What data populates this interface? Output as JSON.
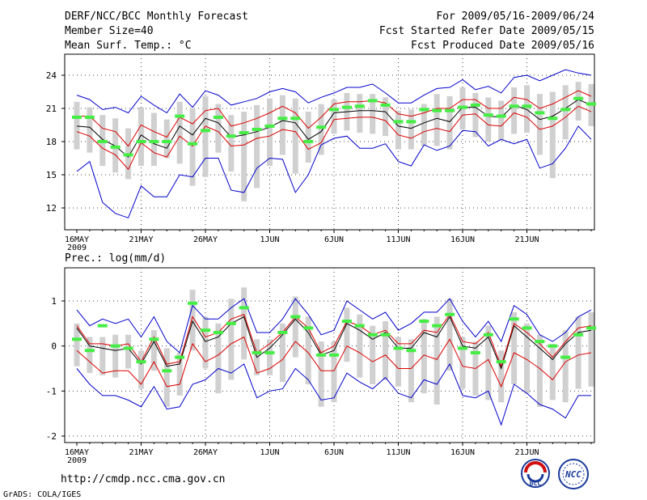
{
  "header": {
    "title": "DERF/NCC/BCC Monthly Forecast",
    "member_size": "Member Size=40",
    "variable": "Mean Surf. Temp.: °C",
    "period": "For 2009/05/16-2009/06/24",
    "started": "Fcst Started Refer Date 2009/05/15",
    "produced": "Fcst Produced Date 2009/05/16"
  },
  "footer": {
    "url": "http://cmdp.ncc.cma.gov.cn",
    "credit": "GrADS: COLA/IGES",
    "bcc_logo": "BCC",
    "ncc_logo": "NCC"
  },
  "colors": {
    "mean": "#000000",
    "envelope": "#0000cc",
    "spread": "#dd0000",
    "bar": "#d0d0d0",
    "obs": "#44ee44",
    "grid": "#444444"
  },
  "chart_data": [
    {
      "type": "line",
      "title": "Mean Surf. Temp.: °C",
      "x_labels": [
        "16MAY",
        "21MAY",
        "26MAY",
        "1JUN",
        "6JUN",
        "11JUN",
        "16JUN",
        "21JUN"
      ],
      "x_sublabel": "2009",
      "y_ticks": [
        "12",
        "15",
        "18",
        "21",
        "24"
      ],
      "ylim": [
        9.5,
        25.5
      ],
      "series": [
        {
          "name": "ensemble-mean",
          "values": [
            19.4,
            19.3,
            18.2,
            17.6,
            16.6,
            18.6,
            17.8,
            17.4,
            19.4,
            18.6,
            20.1,
            19.7,
            18.4,
            18.6,
            18.9,
            19.3,
            19.9,
            19.7,
            18.2,
            18.9,
            20.6,
            20.7,
            20.8,
            20.8,
            20.7,
            19.4,
            19.2,
            19.7,
            20.1,
            19.8,
            21.1,
            21.1,
            20.3,
            20.2,
            21.3,
            20.9,
            20.0,
            20.3,
            21.0,
            21.8,
            21.3
          ]
        },
        {
          "name": "max-envelope",
          "values": [
            22.2,
            21.8,
            20.9,
            21.1,
            20.6,
            22.1,
            21.3,
            20.6,
            22.3,
            21.1,
            22.6,
            22.2,
            21.3,
            21.6,
            21.9,
            22.5,
            22.8,
            22.5,
            21.5,
            22.0,
            22.4,
            22.9,
            22.9,
            23.2,
            22.4,
            21.5,
            21.5,
            22.2,
            22.8,
            22.9,
            23.6,
            22.7,
            23.0,
            22.4,
            23.8,
            24.0,
            23.5,
            24.0,
            24.5,
            24.2,
            24.0
          ]
        },
        {
          "name": "min-envelope",
          "values": [
            15.3,
            16.2,
            12.5,
            11.5,
            11.1,
            14.0,
            13.0,
            13.0,
            15.0,
            14.8,
            16.5,
            16.5,
            13.6,
            13.4,
            15.6,
            16.5,
            16.4,
            13.4,
            15.0,
            17.7,
            18.3,
            18.5,
            17.4,
            17.4,
            17.8,
            16.2,
            15.8,
            17.7,
            17.2,
            17.6,
            19.0,
            18.9,
            17.6,
            18.2,
            17.8,
            18.2,
            15.6,
            16.0,
            17.4,
            19.4,
            18.2
          ]
        },
        {
          "name": "upper-spread",
          "values": [
            20.3,
            20.3,
            19.2,
            18.9,
            17.6,
            19.5,
            18.9,
            18.4,
            20.2,
            19.6,
            20.8,
            21.0,
            19.4,
            19.7,
            20.1,
            20.6,
            21.2,
            20.6,
            19.2,
            20.2,
            21.4,
            21.6,
            21.6,
            21.7,
            21.5,
            20.5,
            20.3,
            20.6,
            21.0,
            21.0,
            21.8,
            21.8,
            21.0,
            21.0,
            22.0,
            21.8,
            21.0,
            21.4,
            22.0,
            22.6,
            22.1
          ]
        },
        {
          "name": "lower-spread",
          "values": [
            18.9,
            18.5,
            17.4,
            16.8,
            15.5,
            17.9,
            17.0,
            16.6,
            18.5,
            17.6,
            19.4,
            18.9,
            17.6,
            17.7,
            18.3,
            18.5,
            19.1,
            18.9,
            17.3,
            17.9,
            20.0,
            20.1,
            20.2,
            20.2,
            19.9,
            18.6,
            18.3,
            18.9,
            19.2,
            18.9,
            20.4,
            20.5,
            19.5,
            19.4,
            20.6,
            20.2,
            19.1,
            19.4,
            20.2,
            21.2,
            20.7
          ]
        },
        {
          "name": "observed",
          "values": [
            20.2,
            20.2,
            18.0,
            17.5,
            16.8,
            18.0,
            18.0,
            18.0,
            20.3,
            17.8,
            19.0,
            20.2,
            18.5,
            18.8,
            19.1,
            19.4,
            20.1,
            20.1,
            18.0,
            19.3,
            20.9,
            21.1,
            21.2,
            21.7,
            21.3,
            19.8,
            19.8,
            20.9,
            20.8,
            20.8,
            21.1,
            21.3,
            20.4,
            20.3,
            21.2,
            21.2,
            20.6,
            20.1,
            20.9,
            21.9,
            21.4
          ]
        }
      ],
      "bars": {
        "top": [
          21.6,
          21.1,
          20.4,
          20.1,
          19.2,
          21.1,
          20.6,
          20.0,
          21.6,
          21.0,
          22.1,
          21.4,
          20.4,
          20.7,
          21.3,
          21.9,
          22.2,
          21.9,
          20.7,
          21.4,
          21.8,
          22.4,
          22.3,
          22.3,
          22.0,
          20.8,
          20.9,
          21.4,
          22.3,
          22.1,
          22.9,
          22.4,
          22.0,
          21.7,
          22.9,
          23.1,
          22.3,
          22.5,
          23.1,
          23.4,
          23.2
        ],
        "bottom": [
          17.3,
          17.0,
          15.8,
          15.2,
          14.6,
          15.8,
          15.8,
          16.5,
          16.0,
          14.0,
          14.8,
          17.0,
          15.3,
          12.6,
          13.8,
          15.8,
          16.8,
          15.1,
          16.1,
          16.8,
          18.7,
          19.0,
          18.8,
          18.7,
          18.5,
          17.3,
          17.3,
          17.6,
          17.6,
          17.3,
          19.1,
          18.4,
          18.0,
          18.1,
          18.7,
          18.8,
          16.8,
          14.7,
          18.2,
          19.9,
          19.4
        ]
      }
    },
    {
      "type": "line",
      "title": "Prec.: log(mm/d)",
      "x_labels": [
        "16MAY",
        "21MAY",
        "26MAY",
        "1JUN",
        "6JUN",
        "11JUN",
        "16JUN",
        "21JUN"
      ],
      "x_sublabel": "2009",
      "y_ticks": [
        "-2",
        "-1",
        "0",
        "1"
      ],
      "ylim": [
        -2.2,
        1.7
      ],
      "series": [
        {
          "name": "ensemble-mean",
          "values": [
            0.4,
            0.0,
            -0.05,
            -0.1,
            -0.05,
            -0.4,
            0.1,
            -0.45,
            -0.4,
            0.55,
            0.1,
            0.2,
            0.5,
            0.65,
            -0.25,
            -0.05,
            0.25,
            0.6,
            0.3,
            -0.2,
            -0.1,
            0.5,
            0.35,
            0.15,
            0.3,
            -0.05,
            -0.05,
            0.3,
            0.2,
            0.65,
            0.0,
            -0.05,
            0.2,
            -0.5,
            0.45,
            0.2,
            -0.05,
            -0.3,
            0.05,
            0.3,
            0.35
          ]
        },
        {
          "name": "max-envelope",
          "values": [
            0.8,
            0.45,
            0.6,
            0.5,
            0.6,
            0.2,
            0.65,
            0.1,
            -0.15,
            0.9,
            0.6,
            0.6,
            0.85,
            1.05,
            0.3,
            0.3,
            0.6,
            1.05,
            0.7,
            0.25,
            0.35,
            1.0,
            0.8,
            0.6,
            0.75,
            0.35,
            0.5,
            0.75,
            0.75,
            1.05,
            0.55,
            0.2,
            0.55,
            0.1,
            0.9,
            0.7,
            0.25,
            0.1,
            0.3,
            0.65,
            0.8
          ]
        },
        {
          "name": "min-envelope",
          "values": [
            -0.5,
            -0.85,
            -1.1,
            -1.1,
            -1.2,
            -1.35,
            -0.9,
            -1.4,
            -1.35,
            -0.85,
            -0.75,
            -0.5,
            -0.6,
            -0.4,
            -1.15,
            -1.0,
            -0.95,
            -0.5,
            -0.75,
            -1.2,
            -1.15,
            -0.6,
            -0.8,
            -0.95,
            -0.7,
            -1.05,
            -1.15,
            -0.75,
            -0.85,
            -0.4,
            -1.1,
            -1.15,
            -1.0,
            -1.75,
            -0.85,
            -1.05,
            -1.3,
            -1.4,
            -1.6,
            -1.1,
            -1.1
          ]
        },
        {
          "name": "upper-spread",
          "values": [
            0.45,
            0.05,
            0.05,
            0.0,
            0.05,
            -0.35,
            0.2,
            -0.4,
            -0.35,
            0.65,
            0.2,
            0.3,
            0.6,
            0.7,
            -0.15,
            0.05,
            0.3,
            0.65,
            0.4,
            -0.15,
            0.0,
            0.55,
            0.45,
            0.25,
            0.35,
            0.05,
            0.05,
            0.35,
            0.3,
            0.7,
            0.1,
            0.05,
            0.3,
            -0.45,
            0.5,
            0.3,
            0.05,
            -0.25,
            0.1,
            0.4,
            0.45
          ]
        },
        {
          "name": "lower-spread",
          "values": [
            -0.1,
            -0.35,
            -0.6,
            -0.55,
            -0.55,
            -0.85,
            -0.35,
            -0.9,
            -0.85,
            0.05,
            -0.35,
            -0.2,
            0.05,
            0.2,
            -0.6,
            -0.5,
            -0.3,
            0.1,
            -0.15,
            -0.55,
            -0.55,
            0.0,
            -0.15,
            -0.35,
            -0.2,
            -0.5,
            -0.5,
            -0.2,
            -0.3,
            0.15,
            -0.45,
            -0.5,
            -0.3,
            -0.9,
            -0.15,
            -0.3,
            -0.5,
            -0.75,
            -0.35,
            -0.2,
            -0.15
          ]
        },
        {
          "name": "observed",
          "values": [
            0.15,
            -0.1,
            0.45,
            0.0,
            -0.05,
            -0.35,
            0.15,
            -0.55,
            -0.25,
            0.95,
            0.35,
            0.3,
            0.5,
            0.85,
            -0.15,
            -0.15,
            0.3,
            0.65,
            0.4,
            -0.2,
            -0.2,
            0.55,
            0.45,
            0.25,
            0.25,
            -0.05,
            -0.1,
            0.55,
            0.45,
            0.7,
            -0.05,
            -0.15,
            0.25,
            -0.35,
            0.6,
            0.4,
            0.1,
            0.0,
            -0.25,
            0.25,
            0.4
          ]
        }
      ],
      "bars": {
        "top": [
          0.5,
          0.2,
          0.2,
          0.25,
          0.25,
          -0.1,
          0.35,
          -0.05,
          -0.15,
          1.25,
          0.65,
          0.5,
          1.05,
          1.3,
          0.15,
          0.15,
          0.5,
          1.1,
          0.65,
          0.1,
          0.1,
          0.85,
          0.7,
          0.45,
          0.55,
          0.2,
          0.15,
          0.6,
          0.65,
          1.05,
          0.2,
          0.1,
          0.45,
          -0.1,
          0.75,
          0.5,
          0.25,
          0.05,
          0.35,
          0.65,
          0.75
        ],
        "bottom": [
          -0.45,
          -0.6,
          -0.65,
          -0.7,
          -0.5,
          -0.95,
          -0.55,
          -1.35,
          -1.1,
          -0.1,
          -0.5,
          -1.05,
          -0.75,
          -0.3,
          -0.65,
          -0.65,
          -0.8,
          -0.25,
          -0.85,
          -1.35,
          -1.25,
          -0.35,
          -0.7,
          -0.85,
          -0.75,
          -0.9,
          -1.25,
          -1.05,
          -1.3,
          -0.55,
          -0.95,
          -1.1,
          -1.2,
          -1.25,
          -0.85,
          -1.05,
          -1.35,
          -1.2,
          -1.25,
          -0.95,
          -0.9
        ]
      }
    }
  ]
}
